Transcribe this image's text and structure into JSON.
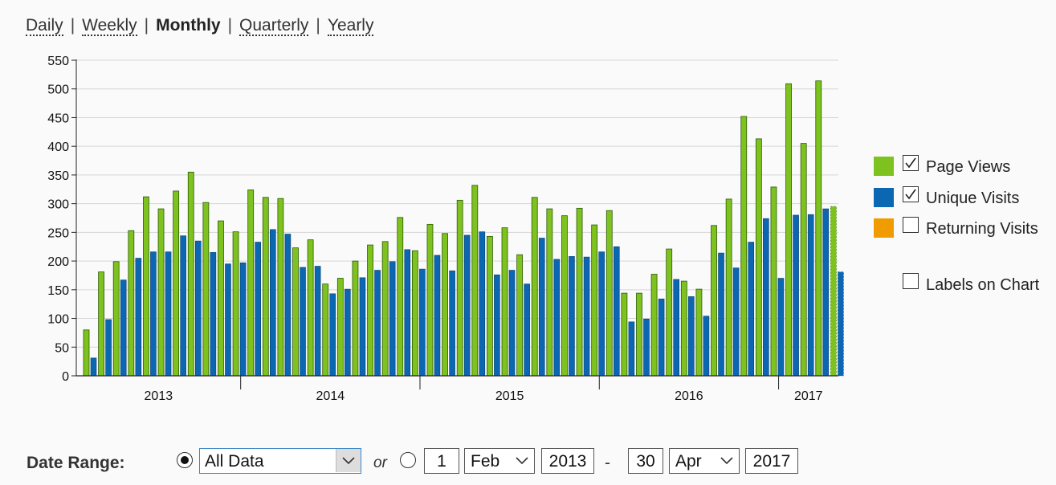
{
  "period_nav": {
    "items": [
      {
        "label": "Daily",
        "active": false
      },
      {
        "label": "Weekly",
        "active": false
      },
      {
        "label": "Monthly",
        "active": true
      },
      {
        "label": "Quarterly",
        "active": false
      },
      {
        "label": "Yearly",
        "active": false
      }
    ],
    "separator": "|"
  },
  "legend": {
    "items": [
      {
        "label": "Page Views",
        "color": "#7dc21e",
        "checked": true
      },
      {
        "label": "Unique Visits",
        "color": "#0b67b2",
        "checked": true
      },
      {
        "label": "Returning Visits",
        "color": "#f09c00",
        "checked": false
      }
    ],
    "labels_on_chart": {
      "label": "Labels on Chart",
      "checked": false
    }
  },
  "date_range": {
    "label": "Date Range:",
    "mode_all_selected": true,
    "preset_value": "All Data",
    "or_label": "or",
    "from_day": "1",
    "from_month": "Feb",
    "from_year": "2013",
    "separator": "-",
    "to_day": "30",
    "to_month": "Apr",
    "to_year": "2017"
  },
  "chart_data": {
    "type": "bar",
    "ylim": [
      0,
      550
    ],
    "yticks": [
      0,
      50,
      100,
      150,
      200,
      250,
      300,
      350,
      400,
      450,
      500,
      550
    ],
    "grid": true,
    "legend_position": "right",
    "year_labels": [
      {
        "label": "2013",
        "start_index": 0,
        "count": 11
      },
      {
        "label": "2014",
        "start_index": 11,
        "count": 12
      },
      {
        "label": "2015",
        "start_index": 23,
        "count": 12
      },
      {
        "label": "2016",
        "start_index": 35,
        "count": 12
      },
      {
        "label": "2017",
        "start_index": 47,
        "count": 4
      }
    ],
    "series": [
      {
        "name": "Page Views",
        "color": "#7dc21e",
        "values": [
          80,
          181,
          199,
          253,
          312,
          291,
          322,
          355,
          302,
          270,
          251,
          324,
          311,
          309,
          223,
          237,
          160,
          170,
          200,
          228,
          234,
          276,
          218,
          264,
          248,
          306,
          332,
          243,
          258,
          211,
          311,
          291,
          279,
          292,
          263,
          288,
          144,
          144,
          177,
          221,
          165,
          151,
          262,
          308,
          452,
          413,
          329,
          509,
          405,
          514,
          295
        ]
      },
      {
        "name": "Unique Visits",
        "color": "#0b67b2",
        "values": [
          31,
          98,
          167,
          205,
          216,
          216,
          244,
          235,
          215,
          195,
          197,
          233,
          255,
          247,
          189,
          191,
          143,
          151,
          171,
          184,
          199,
          220,
          186,
          210,
          183,
          245,
          251,
          176,
          184,
          160,
          240,
          203,
          208,
          207,
          216,
          225,
          94,
          99,
          134,
          168,
          138,
          104,
          214,
          188,
          233,
          274,
          170,
          280,
          281,
          291,
          181
        ]
      }
    ]
  }
}
